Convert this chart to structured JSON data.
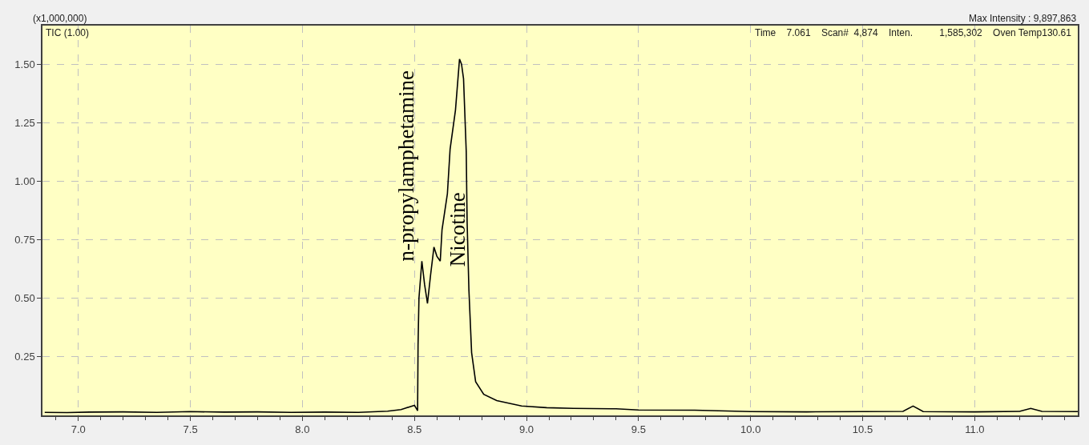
{
  "chart_data": {
    "type": "line",
    "annotations": [
      "(x1,000,000)",
      "TIC (1.00)",
      "Max Intensity : 9,897,863",
      "Time    7.061    Scan#  4,874    Inten.          1,585,302    Oven Temp130.61",
      {
        "text": "n-propylamphetamine",
        "x": 8.53,
        "y": 0.65
      },
      {
        "text": "Nicotine",
        "x": 8.76,
        "y": 0.63
      }
    ],
    "series": [
      {
        "color": "#000000",
        "x": [
          6.85,
          6.95,
          7.05,
          7.2,
          7.35,
          7.5,
          7.65,
          7.8,
          7.95,
          8.1,
          8.25,
          8.38,
          8.44,
          8.5,
          8.514,
          8.516,
          8.52,
          8.533,
          8.545,
          8.558,
          8.572,
          8.587,
          8.6,
          8.615,
          8.623,
          8.647,
          8.659,
          8.683,
          8.701,
          8.71,
          8.719,
          8.731,
          8.735,
          8.743,
          8.755,
          8.773,
          8.809,
          8.867,
          8.978,
          9.09,
          9.21,
          9.4,
          9.5,
          9.75,
          10.0,
          10.25,
          10.5,
          10.68,
          10.725,
          10.77,
          11.0,
          11.2,
          11.25,
          11.3,
          11.46
        ],
        "values": [
          0.013,
          0.012,
          0.014,
          0.015,
          0.013,
          0.016,
          0.014,
          0.015,
          0.013,
          0.014,
          0.013,
          0.018,
          0.025,
          0.043,
          0.02,
          0.3,
          0.5,
          0.659,
          0.56,
          0.478,
          0.6,
          0.719,
          0.68,
          0.659,
          0.793,
          0.947,
          1.137,
          1.304,
          1.522,
          1.5,
          1.438,
          1.127,
          0.826,
          0.535,
          0.268,
          0.144,
          0.09,
          0.063,
          0.04,
          0.033,
          0.03,
          0.028,
          0.023,
          0.022,
          0.016,
          0.015,
          0.016,
          0.017,
          0.04,
          0.016,
          0.015,
          0.017,
          0.03,
          0.017,
          0.016
        ]
      }
    ],
    "xlim": [
      6.84,
      11.46
    ],
    "ylim": [
      0,
      1.665
    ],
    "xticks": [
      {
        "value": 6.9,
        "label": null
      },
      {
        "value": 7.0,
        "label": "7.0"
      },
      {
        "value": 7.1,
        "label": null
      },
      {
        "value": 7.2,
        "label": null
      },
      {
        "value": 7.3,
        "label": null
      },
      {
        "value": 7.4,
        "label": null
      },
      {
        "value": 7.5,
        "label": "7.5"
      },
      {
        "value": 7.6,
        "label": null
      },
      {
        "value": 7.7,
        "label": null
      },
      {
        "value": 7.8,
        "label": null
      },
      {
        "value": 7.9,
        "label": null
      },
      {
        "value": 8.0,
        "label": "8.0"
      },
      {
        "value": 8.1,
        "label": null
      },
      {
        "value": 8.2,
        "label": null
      },
      {
        "value": 8.3,
        "label": null
      },
      {
        "value": 8.4,
        "label": null
      },
      {
        "value": 8.5,
        "label": "8.5"
      },
      {
        "value": 8.6,
        "label": null
      },
      {
        "value": 8.7,
        "label": null
      },
      {
        "value": 8.8,
        "label": null
      },
      {
        "value": 8.9,
        "label": null
      },
      {
        "value": 9.0,
        "label": "9.0"
      },
      {
        "value": 9.1,
        "label": null
      },
      {
        "value": 9.2,
        "label": null
      },
      {
        "value": 9.3,
        "label": null
      },
      {
        "value": 9.4,
        "label": null
      },
      {
        "value": 9.5,
        "label": "9.5"
      },
      {
        "value": 9.6,
        "label": null
      },
      {
        "value": 9.7,
        "label": null
      },
      {
        "value": 9.8,
        "label": null
      },
      {
        "value": 9.9,
        "label": null
      },
      {
        "value": 10.0,
        "label": "10.0"
      },
      {
        "value": 10.1,
        "label": null
      },
      {
        "value": 10.2,
        "label": null
      },
      {
        "value": 10.3,
        "label": null
      },
      {
        "value": 10.4,
        "label": null
      },
      {
        "value": 10.5,
        "label": "10.5"
      },
      {
        "value": 10.6,
        "label": null
      },
      {
        "value": 10.7,
        "label": null
      },
      {
        "value": 10.8,
        "label": null
      },
      {
        "value": 10.9,
        "label": null
      },
      {
        "value": 11.0,
        "label": "11.0"
      },
      {
        "value": 11.1,
        "label": null
      },
      {
        "value": 11.2,
        "label": null
      },
      {
        "value": 11.3,
        "label": null
      },
      {
        "value": 11.4,
        "label": null
      }
    ],
    "yticks": [
      {
        "value": 0.25,
        "label": "0.25"
      },
      {
        "value": 0.5,
        "label": "0.50"
      },
      {
        "value": 0.75,
        "label": "0.75"
      },
      {
        "value": 1.0,
        "label": "1.00"
      },
      {
        "value": 1.25,
        "label": "1.25"
      },
      {
        "value": 1.5,
        "label": "1.50"
      }
    ],
    "grid": true,
    "marker": "none",
    "line_style": "solid"
  }
}
